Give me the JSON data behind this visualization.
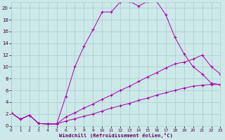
{
  "xlabel": "Windchill (Refroidissement éolien,°C)",
  "bg_color": "#cce8e8",
  "grid_color": "#aacccc",
  "line_color": "#aa00aa",
  "xlim": [
    0,
    23
  ],
  "ylim": [
    0,
    21
  ],
  "curve1_x": [
    0,
    1,
    2,
    3,
    4,
    5,
    6,
    7,
    8,
    9,
    10,
    11,
    12,
    13,
    14,
    15,
    16,
    17,
    18,
    19,
    20,
    21,
    22,
    23
  ],
  "curve1_y": [
    2.2,
    1.1,
    1.8,
    0.4,
    0.3,
    0.3,
    5.0,
    10.0,
    13.5,
    16.3,
    19.3,
    19.3,
    21.0,
    21.1,
    20.3,
    21.1,
    21.1,
    18.8,
    15.0,
    12.2,
    10.0,
    8.8,
    7.2,
    7.0
  ],
  "curve2_x": [
    0,
    1,
    2,
    3,
    4,
    5,
    6,
    7,
    8,
    9,
    10,
    11,
    12,
    13,
    14,
    15,
    16,
    17,
    18,
    19,
    20,
    21,
    22,
    23
  ],
  "curve2_y": [
    2.2,
    1.1,
    1.8,
    0.4,
    0.3,
    0.3,
    1.5,
    2.2,
    3.0,
    3.7,
    4.5,
    5.2,
    6.0,
    6.7,
    7.5,
    8.3,
    9.0,
    9.8,
    10.5,
    10.8,
    11.3,
    12.0,
    10.0,
    8.8
  ],
  "curve3_x": [
    0,
    1,
    2,
    3,
    4,
    5,
    6,
    7,
    8,
    9,
    10,
    11,
    12,
    13,
    14,
    15,
    16,
    17,
    18,
    19,
    20,
    21,
    22,
    23
  ],
  "curve3_y": [
    2.2,
    1.1,
    1.8,
    0.4,
    0.3,
    0.3,
    0.8,
    1.2,
    1.6,
    2.0,
    2.5,
    3.0,
    3.4,
    3.8,
    4.3,
    4.7,
    5.2,
    5.6,
    6.0,
    6.4,
    6.7,
    6.9,
    7.0,
    7.0
  ]
}
